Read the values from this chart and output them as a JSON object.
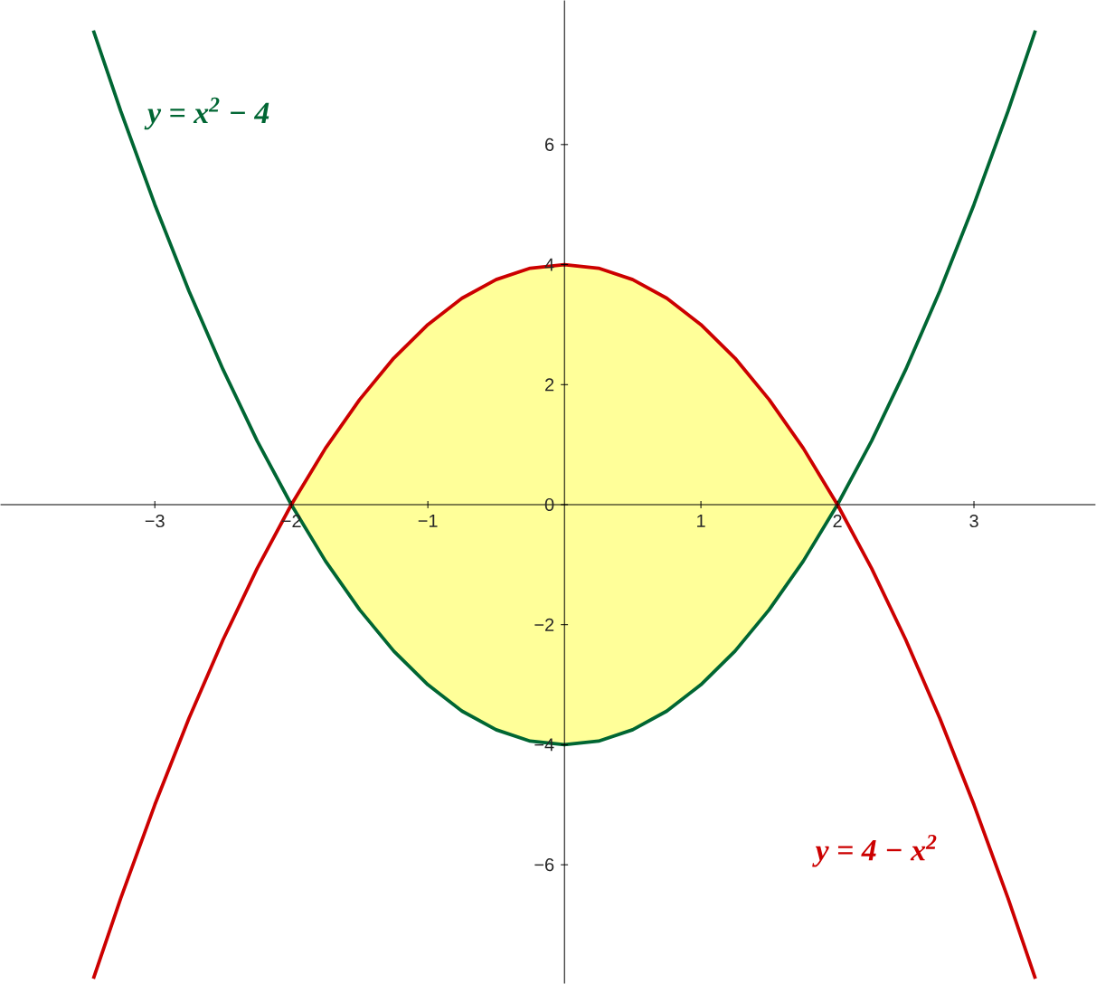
{
  "chart_data": {
    "type": "line",
    "x": [
      -3.45,
      -3.25,
      -3,
      -2.75,
      -2.5,
      -2.25,
      -2,
      -1.75,
      -1.5,
      -1.25,
      -1,
      -0.75,
      -0.5,
      -0.25,
      0,
      0.25,
      0.5,
      0.75,
      1,
      1.25,
      1.5,
      1.75,
      2,
      2.25,
      2.5,
      2.75,
      3,
      3.25,
      3.45
    ],
    "series": [
      {
        "type": "area",
        "color": "#ffff99",
        "x": [
          -2,
          -1.75,
          -1.5,
          -1.25,
          -1,
          -0.75,
          -0.5,
          -0.25,
          0,
          0.25,
          0.5,
          0.75,
          1,
          1.25,
          1.5,
          1.75,
          2
        ],
        "values": [
          0,
          0.94,
          1.75,
          2.44,
          3,
          3.44,
          3.75,
          3.94,
          4,
          3.94,
          3.75,
          3.44,
          3,
          2.44,
          1.75,
          0.94,
          0
        ]
      },
      {
        "type": "area",
        "color": "#ffff99",
        "x": [
          -2,
          -1.75,
          -1.5,
          -1.25,
          -1,
          -0.75,
          -0.5,
          -0.25,
          0,
          0.25,
          0.5,
          0.75,
          1,
          1.25,
          1.5,
          1.75,
          2
        ],
        "values": [
          0,
          -0.94,
          -1.75,
          -2.44,
          -3,
          -3.44,
          -3.75,
          -3.94,
          -4,
          -3.94,
          -3.75,
          -3.44,
          -3,
          -2.44,
          -1.75,
          -0.94,
          0
        ]
      },
      {
        "name": "y = x$^{2}$ − 4",
        "color": "#006633",
        "values": [
          7.9,
          6.56,
          5,
          3.56,
          2.25,
          1.06,
          0,
          -0.94,
          -1.75,
          -2.44,
          -3,
          -3.44,
          -3.75,
          -3.94,
          -4,
          -3.94,
          -3.75,
          -3.44,
          -3,
          -2.44,
          -1.75,
          -0.94,
          0,
          1.06,
          2.25,
          3.56,
          5,
          6.56,
          7.9
        ]
      },
      {
        "name": "y = 4 − x$^{2}$",
        "color": "#cc0000",
        "values": [
          -7.9,
          -6.56,
          -5,
          -3.56,
          -2.25,
          -1.06,
          0,
          0.94,
          1.75,
          2.44,
          3,
          3.44,
          3.75,
          3.94,
          4,
          3.94,
          3.75,
          3.44,
          3,
          2.44,
          1.75,
          0.94,
          0,
          -1.06,
          -2.25,
          -3.56,
          -5,
          -6.56,
          -7.9
        ]
      }
    ],
    "xlim": [
      -4.13,
      3.89
    ],
    "ylim": [
      -7.98,
      8.4
    ],
    "xticks": [
      {
        "value": -3,
        "label": "−3"
      },
      {
        "value": -2,
        "label": "−2"
      },
      {
        "value": -1,
        "label": "−1"
      },
      1,
      2,
      3
    ],
    "yticks": [
      {
        "value": -6,
        "label": "−6"
      },
      {
        "value": -4,
        "label": "−4"
      },
      {
        "value": -2,
        "label": "−2"
      },
      0,
      2,
      4,
      6
    ],
    "grid": false
  }
}
